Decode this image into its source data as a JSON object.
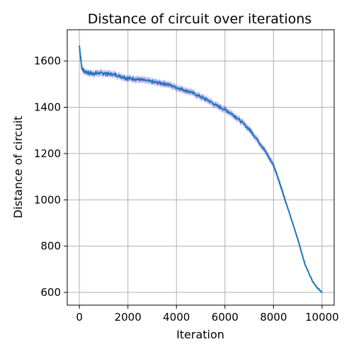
{
  "chart_data": {
    "type": "line",
    "title": "Distance of circuit over iterations",
    "xlabel": "Iteration",
    "ylabel": "Distance of circuit",
    "xlim": [
      -500,
      10500
    ],
    "ylim": [
      545,
      1735
    ],
    "xticks": [
      0,
      2000,
      4000,
      6000,
      8000,
      10000
    ],
    "yticks": [
      600,
      800,
      1000,
      1200,
      1400,
      1600
    ],
    "grid": true,
    "series": [
      {
        "color": "#1f77b4",
        "band_color": "#7b68ee",
        "x": [
          0,
          100,
          200,
          400,
          600,
          800,
          1000,
          1200,
          1500,
          1800,
          2000,
          2300,
          2600,
          3000,
          3300,
          3600,
          4000,
          4300,
          4600,
          5000,
          5300,
          5600,
          6000,
          6300,
          6600,
          7000,
          7300,
          7600,
          8000,
          8300,
          8600,
          9000,
          9300,
          9600,
          9800,
          10000
        ],
        "values": [
          1665,
          1568,
          1555,
          1548,
          1545,
          1548,
          1547,
          1545,
          1540,
          1530,
          1525,
          1522,
          1518,
          1510,
          1505,
          1500,
          1485,
          1475,
          1465,
          1445,
          1430,
          1410,
          1390,
          1370,
          1345,
          1305,
          1265,
          1220,
          1150,
          1060,
          960,
          830,
          720,
          650,
          620,
          600
        ]
      }
    ]
  }
}
